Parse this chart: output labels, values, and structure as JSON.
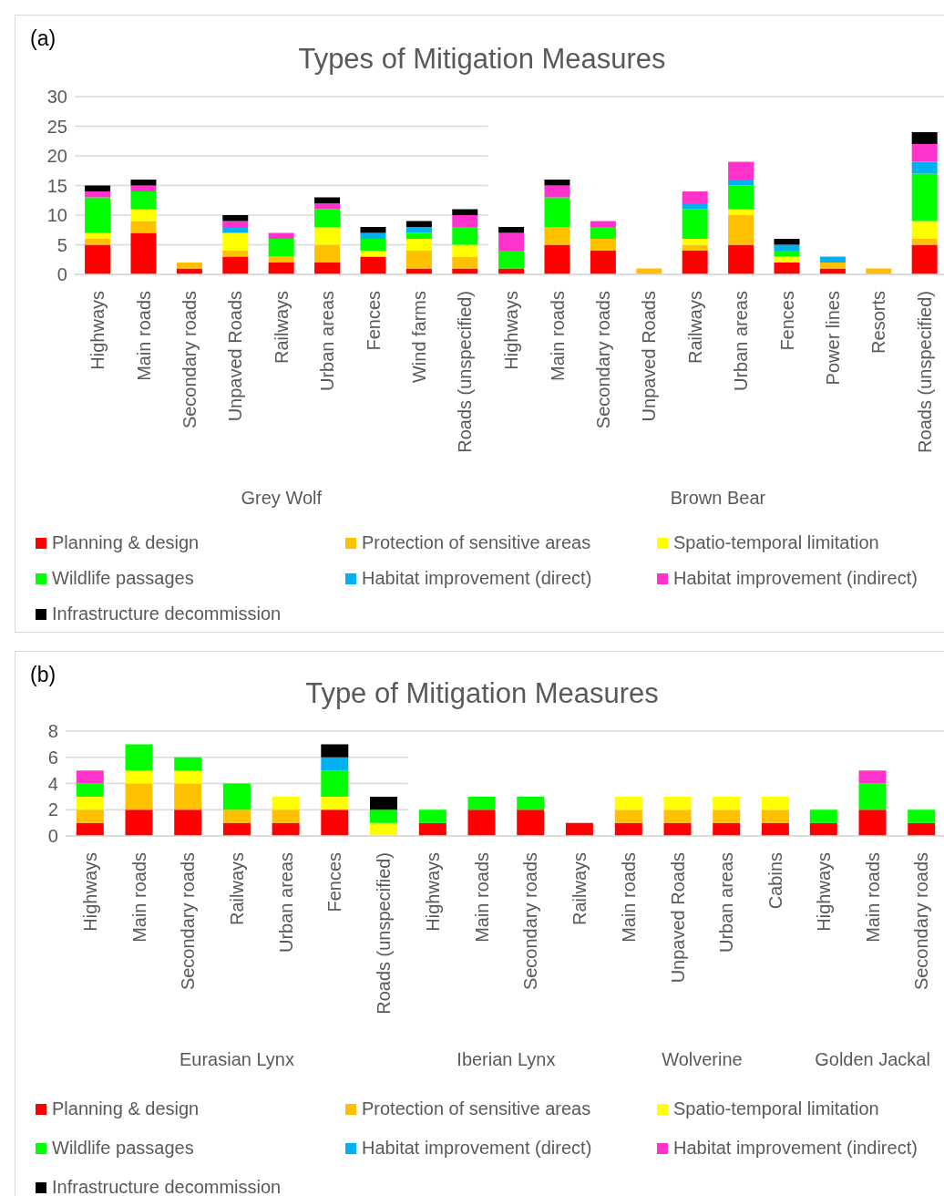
{
  "chart_data": [
    {
      "type": "bar",
      "stacked": true,
      "title": "Types of Mitigation Measures",
      "annotations": [
        "(a)"
      ],
      "xlabel": "Grey Wolf",
      "categories": [
        "Highways",
        "Main roads",
        "Secondary roads",
        "Unpaved Roads",
        "Railways",
        "Urban areas",
        "Fences",
        "Wind farms",
        "Roads (unspecified)"
      ],
      "ylim": [
        0,
        30
      ],
      "yticks": [
        0,
        5,
        10,
        15,
        20,
        25,
        30
      ],
      "grid": "y",
      "legend": "bottom",
      "series": [
        {
          "name": "Planning & design",
          "color": "#ff0000",
          "values": [
            5,
            7,
            1,
            3,
            2,
            2,
            3,
            1,
            1
          ]
        },
        {
          "name": "Protection of sensitive areas",
          "color": "#ffc000",
          "values": [
            1,
            2,
            1,
            1,
            1,
            3,
            0,
            3,
            2
          ]
        },
        {
          "name": "Spatio-temporal limitation",
          "color": "#ffff00",
          "values": [
            1,
            2,
            0,
            3,
            0,
            3,
            1,
            2,
            2
          ]
        },
        {
          "name": "Wildlife passages",
          "color": "#00ff00",
          "values": [
            6,
            3,
            0,
            0,
            3,
            3,
            2,
            1,
            3
          ]
        },
        {
          "name": "Habitat improvement (direct)",
          "color": "#00b0f0",
          "values": [
            0,
            0,
            0,
            1,
            0,
            0,
            1,
            1,
            0
          ]
        },
        {
          "name": "Habitat improvement (indirect)",
          "color": "#ff33cc",
          "values": [
            1,
            1,
            0,
            1,
            1,
            1,
            0,
            0,
            2
          ]
        },
        {
          "name": "Infrastructure decommission",
          "color": "#000000",
          "values": [
            1,
            1,
            0,
            1,
            0,
            1,
            1,
            1,
            1
          ]
        }
      ]
    },
    {
      "type": "bar",
      "stacked": true,
      "xlabel": "Brown Bear",
      "categories": [
        "Highways",
        "Main roads",
        "Secondary roads",
        "Unpaved Roads",
        "Railways",
        "Urban areas",
        "Fences",
        "Power lines",
        "Resorts",
        "Roads (unspecified)"
      ],
      "ylim": [
        0,
        30
      ],
      "yticks": [
        0,
        5,
        10,
        15,
        20,
        25,
        30
      ],
      "grid": "y",
      "tick_labels": "x",
      "series": [
        {
          "color": "#ff0000",
          "values": [
            1,
            5,
            4,
            0,
            4,
            5,
            2,
            1,
            0,
            5
          ]
        },
        {
          "color": "#ffc000",
          "values": [
            0,
            3,
            2,
            1,
            1,
            5,
            0,
            1,
            1,
            1
          ]
        },
        {
          "color": "#ffff00",
          "values": [
            0,
            0,
            0,
            0,
            1,
            1,
            1,
            0,
            0,
            3
          ]
        },
        {
          "color": "#00ff00",
          "values": [
            3,
            5,
            2,
            0,
            5,
            4,
            1,
            0,
            0,
            8
          ]
        },
        {
          "color": "#00b0f0",
          "values": [
            0,
            0,
            0,
            0,
            1,
            1,
            1,
            1,
            0,
            2
          ]
        },
        {
          "color": "#ff33cc",
          "values": [
            3,
            2,
            1,
            0,
            2,
            3,
            0,
            0,
            0,
            3
          ]
        },
        {
          "color": "#000000",
          "values": [
            1,
            1,
            0,
            0,
            0,
            0,
            1,
            0,
            0,
            2
          ]
        }
      ]
    },
    {
      "type": "bar",
      "stacked": true,
      "title": "Type of Mitigation Measures",
      "annotations": [
        "(b)"
      ],
      "xlabel": "Eurasian Lynx",
      "categories": [
        "Highways",
        "Main roads",
        "Secondary roads",
        "Railways",
        "Urban areas",
        "Fences",
        "Roads (unspecified)"
      ],
      "ylim": [
        0,
        8
      ],
      "yticks": [
        0,
        2,
        4,
        6,
        8
      ],
      "grid": "y",
      "legend": "bottom",
      "series": [
        {
          "name": "Planning & design",
          "color": "#ff0000",
          "values": [
            1,
            2,
            2,
            1,
            1,
            2,
            0
          ]
        },
        {
          "name": "Protection of sensitive areas",
          "color": "#ffc000",
          "values": [
            1,
            2,
            2,
            1,
            1,
            0,
            0
          ]
        },
        {
          "name": "Spatio-temporal limitation",
          "color": "#ffff00",
          "values": [
            1,
            1,
            1,
            0,
            1,
            1,
            1
          ]
        },
        {
          "name": "Wildlife passages",
          "color": "#00ff00",
          "values": [
            1,
            2,
            1,
            2,
            0,
            2,
            1
          ]
        },
        {
          "name": "Habitat improvement (direct)",
          "color": "#00b0f0",
          "values": [
            0,
            0,
            0,
            0,
            0,
            1,
            0
          ]
        },
        {
          "name": "Habitat improvement (indirect)",
          "color": "#ff33cc",
          "values": [
            1,
            0,
            0,
            0,
            0,
            0,
            0
          ]
        },
        {
          "name": "Infrastructure decommission",
          "color": "#000000",
          "values": [
            0,
            0,
            0,
            0,
            0,
            1,
            1
          ]
        }
      ]
    },
    {
      "type": "bar",
      "stacked": true,
      "xlabel": "Iberian Lynx",
      "categories": [
        "Highways",
        "Main roads",
        "Secondary roads",
        "Railways"
      ],
      "ylim": [
        0,
        8
      ],
      "yticks": [
        0,
        2,
        4,
        6,
        8
      ],
      "grid": "y",
      "tick_labels": "x",
      "series": [
        {
          "color": "#ff0000",
          "values": [
            1,
            2,
            2,
            1
          ]
        },
        {
          "color": "#00ff00",
          "values": [
            1,
            1,
            1,
            0
          ]
        }
      ]
    },
    {
      "type": "bar",
      "stacked": true,
      "xlabel": "Wolverine",
      "categories": [
        "Main roads",
        "Unpaved Roads",
        "Urban areas",
        "Cabins"
      ],
      "ylim": [
        0,
        8
      ],
      "yticks": [
        0,
        2,
        4,
        6,
        8
      ],
      "grid": "y",
      "tick_labels": "x",
      "series": [
        {
          "color": "#ff0000",
          "values": [
            1,
            1,
            1,
            1
          ]
        },
        {
          "color": "#ffc000",
          "values": [
            1,
            1,
            1,
            1
          ]
        },
        {
          "color": "#ffff00",
          "values": [
            1,
            1,
            1,
            1
          ]
        }
      ]
    },
    {
      "type": "bar",
      "stacked": true,
      "xlabel": "Golden Jackal",
      "categories": [
        "Highways",
        "Main roads",
        "Secondary roads"
      ],
      "ylim": [
        0,
        8
      ],
      "yticks": [
        0,
        2,
        4,
        6,
        8
      ],
      "grid": "y",
      "tick_labels": "x",
      "series": [
        {
          "color": "#ff0000",
          "values": [
            1,
            2,
            1
          ]
        },
        {
          "color": "#00ff00",
          "values": [
            1,
            2,
            1
          ]
        },
        {
          "color": "#ff33cc",
          "values": [
            0,
            1,
            0
          ]
        }
      ]
    }
  ]
}
